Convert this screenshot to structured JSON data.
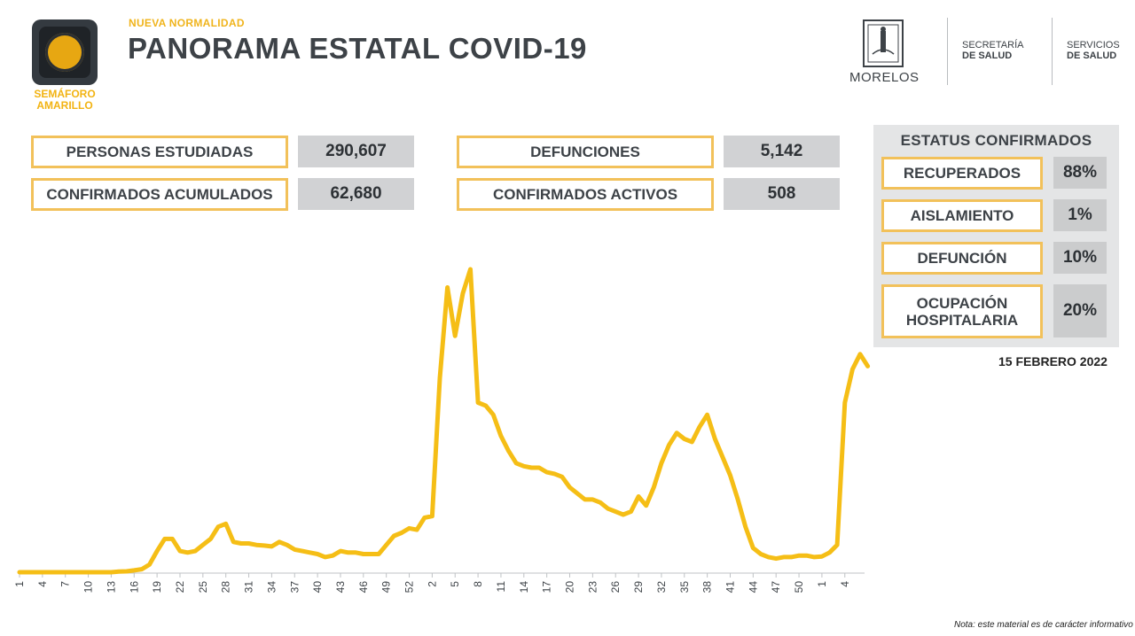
{
  "header": {
    "subtitle": "NUEVA NORMALIDAD",
    "title": "PANORAMA ESTATAL COVID-19",
    "semaforo": {
      "label_line1": "SEMÁFORO",
      "label_line2": "AMARILLO",
      "color": "#e7a712"
    },
    "logos": {
      "state": "MORELOS",
      "org1_line1": "SECRETARÍA",
      "org1_line2": "DE SALUD",
      "org2_line1": "SERVICIOS",
      "org2_line2": "DE SALUD"
    }
  },
  "stats": [
    {
      "label": "PERSONAS ESTUDIADAS",
      "value": "290,607"
    },
    {
      "label": "CONFIRMADOS ACUMULADOS",
      "value": "62,680"
    },
    {
      "label": "DEFUNCIONES",
      "value": "5,142"
    },
    {
      "label": "CONFIRMADOS ACTIVOS",
      "value": "508"
    }
  ],
  "estatus": {
    "title": "ESTATUS CONFIRMADOS",
    "items": [
      {
        "label": "RECUPERADOS",
        "value": "88%"
      },
      {
        "label": "AISLAMIENTO",
        "value": "1%"
      },
      {
        "label": "DEFUNCIÓN",
        "value": "10%"
      },
      {
        "label_line1": "OCUPACIÓN",
        "label_line2": "HOSPITALARIA",
        "value": "20%"
      }
    ]
  },
  "date": "15 FEBRERO 2022",
  "note": "Nota: este material es de carácter informativo",
  "colors": {
    "accent": "#f2c15a",
    "line": "#f5be16",
    "value_bg": "#d1d2d4",
    "panel_bg": "#e4e5e6"
  },
  "chart_data": {
    "type": "line",
    "title": "",
    "xlabel": "",
    "ylabel": "",
    "tick_labels": [
      "1",
      "4",
      "7",
      "10",
      "13",
      "16",
      "19",
      "22",
      "25",
      "28",
      "31",
      "34",
      "37",
      "40",
      "43",
      "46",
      "49",
      "52",
      "2",
      "5",
      "8",
      "11",
      "14",
      "17",
      "20",
      "23",
      "26",
      "29",
      "32",
      "35",
      "38",
      "41",
      "44",
      "47",
      "50",
      "1",
      "4"
    ],
    "x_range": [
      0,
      110
    ],
    "ylim": [
      0,
      100
    ],
    "values": [
      0,
      0,
      0,
      0,
      0,
      0,
      0,
      0,
      0,
      0,
      0,
      0,
      0,
      0.2,
      0.3,
      0.6,
      1,
      2.5,
      7,
      11,
      11,
      7,
      6.5,
      7,
      9,
      11,
      15,
      16,
      10,
      9.5,
      9.5,
      9,
      8.8,
      8.5,
      10,
      9,
      7.5,
      7,
      6.5,
      6,
      5,
      5.5,
      7,
      6.5,
      6.5,
      6,
      6,
      6,
      9,
      12,
      13,
      14.5,
      14,
      18,
      18.5,
      64,
      94,
      78,
      92,
      100,
      56,
      55,
      52,
      45,
      40,
      36,
      35,
      34.5,
      34.5,
      33,
      32.5,
      31.5,
      28,
      26,
      24,
      24,
      23,
      21,
      20,
      19,
      20,
      25,
      22,
      28,
      36,
      42,
      46,
      44,
      43,
      48,
      52,
      44,
      38,
      32,
      24,
      15,
      8,
      6,
      5,
      4.5,
      5,
      5,
      5.5,
      5.5,
      5,
      5.2,
      6.5,
      9,
      56,
      67,
      72,
      68
    ]
  }
}
